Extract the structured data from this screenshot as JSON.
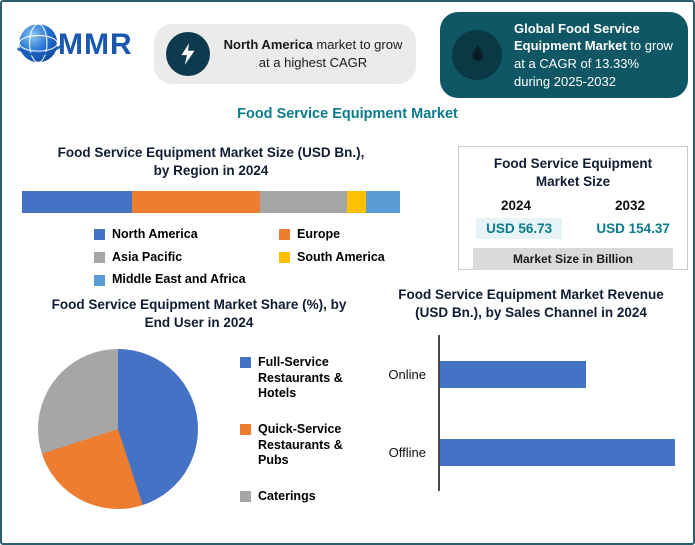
{
  "logo": {
    "text": "MMR"
  },
  "header": {
    "badge1": {
      "icon": "lightning-icon",
      "bold": "North America",
      "rest": " market to grow at a highest CAGR"
    },
    "badge2": {
      "icon": "flame-icon",
      "bold": "Global Food Service Equipment Market",
      "rest": " to grow at a CAGR of 13.33% during 2025-2032"
    }
  },
  "page_title": "Food Service Equipment Market",
  "market_size_panel": {
    "title": "Food Service Equipment Market Size",
    "year_left": "2024",
    "year_right": "2032",
    "value_left": "USD 56.73",
    "value_right": "USD 154.37",
    "footnote": "Market Size in Billion"
  },
  "colors": {
    "accent_teal": "#0b7b8c",
    "badge_dark_teal": "#0f5765",
    "heading_navy": "#101c33",
    "border_teal": "#2b5f6e",
    "bar_blue": "#4472c4",
    "bar_orange": "#ed7d31",
    "bar_gray": "#a6a6a6",
    "bar_yellow": "#ffc000",
    "bar_lightblue": "#5b9bd5"
  },
  "chart_data": [
    {
      "type": "bar",
      "subtype": "stacked-horizontal",
      "title": "Food Service Equipment Market Size (USD Bn.), by Region in 2024",
      "categories": [
        "North America",
        "Europe",
        "Asia Pacific",
        "South America",
        "Middle East and Africa"
      ],
      "values": [
        29,
        34,
        23,
        5,
        9
      ],
      "colors": [
        "#4472c4",
        "#ed7d31",
        "#a6a6a6",
        "#ffc000",
        "#5b9bd5"
      ],
      "legend_position": "bottom",
      "axis": "none"
    },
    {
      "type": "pie",
      "title": "Food Service Equipment Market Share (%), by End User in 2024",
      "categories": [
        "Full-Service Restaurants & Hotels",
        "Quick-Service Restaurants & Pubs",
        "Caterings"
      ],
      "values": [
        45,
        25,
        30
      ],
      "colors": [
        "#4472c4",
        "#ed7d31",
        "#a6a6a6"
      ],
      "legend_position": "right",
      "start_angle_deg": 0
    },
    {
      "type": "bar",
      "subtype": "horizontal",
      "title": "Food Service Equipment Market Revenue (USD Bn.), by Sales Channel in 2024",
      "categories": [
        "Online",
        "Offline"
      ],
      "values": [
        62,
        100
      ],
      "value_note": "relative bar lengths, % of longest bar",
      "color": "#4472c4",
      "legend_position": "none"
    }
  ]
}
